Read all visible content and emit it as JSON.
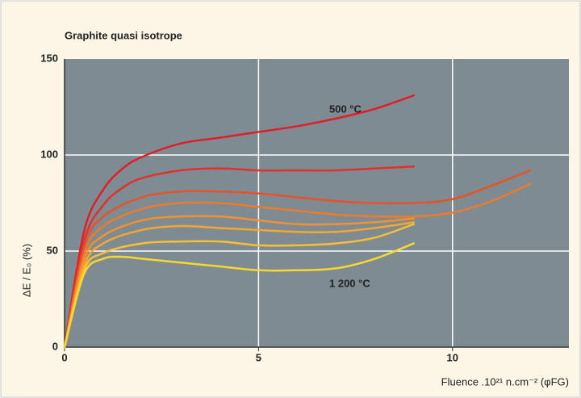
{
  "chart_data": {
    "type": "line",
    "title": "Graphite quasi isotrope",
    "xlabel": "Fluence .10²¹ n.cm⁻² (φFG)",
    "ylabel": "ΔE / E₀ (%)",
    "xlim": [
      0,
      13
    ],
    "xticks": [
      0,
      5,
      10
    ],
    "ylim": [
      0,
      150
    ],
    "yticks": [
      0,
      50,
      100,
      150
    ],
    "grid": true,
    "series": [
      {
        "name": "500 °C",
        "color": "#e01e2a",
        "x": [
          0,
          0.5,
          1,
          1.5,
          2,
          3,
          4,
          5,
          6,
          7,
          8,
          9
        ],
        "values": [
          0,
          60,
          82,
          93,
          99,
          106,
          109,
          112,
          115,
          119,
          124,
          131
        ]
      },
      {
        "color": "#e2302a",
        "x": [
          0,
          0.5,
          1,
          1.5,
          2,
          3,
          4,
          5,
          6,
          7,
          8,
          9
        ],
        "values": [
          0,
          55,
          74,
          83,
          88,
          92,
          93,
          92,
          92,
          92,
          93,
          94
        ]
      },
      {
        "color": "#e85226",
        "x": [
          0,
          0.5,
          1,
          2,
          3,
          4,
          5,
          6,
          7,
          8,
          9,
          10,
          11,
          12
        ],
        "values": [
          0,
          52,
          68,
          78,
          81,
          81,
          80,
          78,
          76,
          75,
          75,
          77,
          84,
          92
        ]
      },
      {
        "color": "#ee7a2a",
        "x": [
          0,
          0.5,
          1,
          2,
          3,
          4,
          5,
          6,
          7,
          8,
          9,
          10,
          11,
          12
        ],
        "values": [
          0,
          48,
          63,
          72,
          75,
          75,
          73,
          71,
          69,
          68,
          68,
          70,
          76,
          85
        ]
      },
      {
        "color": "#f2912e",
        "x": [
          0,
          0.5,
          1,
          2,
          3,
          4,
          5,
          6,
          7,
          8,
          9
        ],
        "values": [
          0,
          45,
          58,
          66,
          68,
          68,
          66,
          64,
          64,
          65,
          67
        ]
      },
      {
        "color": "#f5a830",
        "x": [
          0,
          0.5,
          1,
          2,
          3,
          4,
          5,
          6,
          7,
          8,
          9
        ],
        "values": [
          0,
          42,
          54,
          61,
          63,
          62,
          61,
          60,
          60,
          62,
          65
        ]
      },
      {
        "color": "#f8c030",
        "x": [
          0,
          0.5,
          1,
          2,
          3,
          4,
          5,
          6,
          7,
          8,
          9
        ],
        "values": [
          0,
          40,
          49,
          54,
          55,
          55,
          53,
          53,
          54,
          57,
          64
        ]
      },
      {
        "name": "1 200 °C",
        "color": "#f8d82e",
        "x": [
          0,
          0.5,
          1,
          1.5,
          2,
          3,
          4,
          5,
          6,
          7,
          8,
          9
        ],
        "values": [
          0,
          38,
          46,
          47,
          46,
          44,
          42,
          40,
          40,
          41,
          46,
          54
        ]
      }
    ]
  }
}
